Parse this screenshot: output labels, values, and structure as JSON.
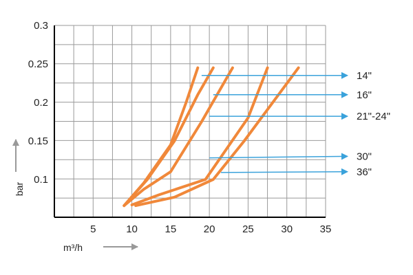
{
  "chart_data": {
    "type": "line",
    "title": "",
    "xlabel": "m³/h",
    "ylabel": "bar",
    "xlim": [
      0,
      35
    ],
    "ylim": [
      0.05,
      0.3
    ],
    "x_ticks": [
      "5",
      "10",
      "15",
      "20",
      "25",
      "30",
      "35"
    ],
    "y_ticks": [
      "0.1",
      "0.15",
      "0.2",
      "0.25",
      "0.3"
    ],
    "grid": true,
    "colors": {
      "series": "#f0883a",
      "arrow": "#3aa2db",
      "grid": "#999999",
      "axis": "#000000"
    },
    "series": [
      {
        "name": "14\"",
        "x": [
          9.0,
          11.5,
          15.0,
          17.0,
          18.5
        ],
        "y": [
          0.066,
          0.095,
          0.145,
          0.2,
          0.245
        ]
      },
      {
        "name": "16\"",
        "x": [
          9.0,
          12.0,
          15.5,
          18.5,
          20.5
        ],
        "y": [
          0.066,
          0.1,
          0.15,
          0.21,
          0.245
        ]
      },
      {
        "name": "21\"-24\"",
        "x": [
          9.0,
          11.5,
          15.0,
          19.0,
          23.0
        ],
        "y": [
          0.066,
          0.087,
          0.11,
          0.175,
          0.245
        ]
      },
      {
        "name": "30\"",
        "x": [
          10.0,
          13.5,
          19.5,
          25.0,
          27.5
        ],
        "y": [
          0.067,
          0.08,
          0.1,
          0.18,
          0.245
        ]
      },
      {
        "name": "36\"",
        "x": [
          10.5,
          15.5,
          20.5,
          24.5,
          31.5
        ],
        "y": [
          0.066,
          0.077,
          0.1,
          0.15,
          0.245
        ]
      }
    ],
    "annotations": [
      {
        "label": "14\"",
        "from": [
          19.0,
          0.235
        ],
        "to": [
          40.0,
          0.235
        ]
      },
      {
        "label": "16\"",
        "from": [
          20.5,
          0.21
        ],
        "to": [
          40.0,
          0.21
        ]
      },
      {
        "label": "21\"-24\"",
        "from": [
          20.0,
          0.182
        ],
        "to": [
          40.0,
          0.182
        ]
      },
      {
        "label": "30\"",
        "from": [
          20.0,
          0.128
        ],
        "to": [
          40.0,
          0.13
        ]
      },
      {
        "label": "36\"",
        "from": [
          21.5,
          0.109
        ],
        "to": [
          40.0,
          0.11
        ]
      }
    ]
  }
}
